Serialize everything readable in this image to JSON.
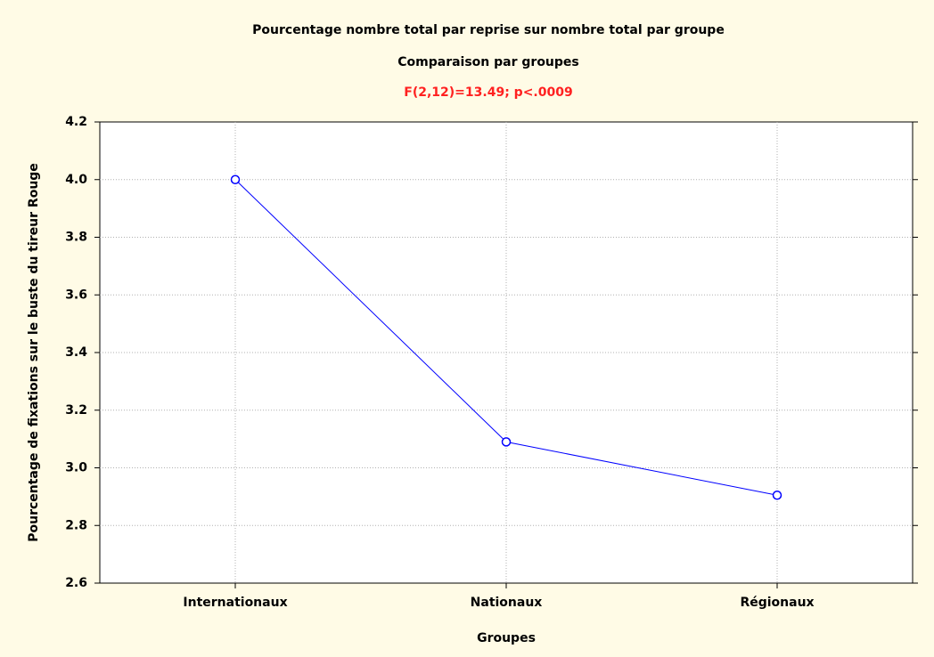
{
  "chart_data": {
    "type": "line",
    "title": "Pourcentage nombre total par reprise sur nombre total par groupe",
    "subtitle": "Comparaison par groupes",
    "annotation": "F(2,12)=13.49; p<.0009",
    "x_label": "Groupes",
    "y_label": "Pourcentage de fixations sur le buste du tireur Rouge",
    "categories": [
      "Internationaux",
      "Nationaux",
      "Régionaux"
    ],
    "series": [
      {
        "name": "Pourcentage",
        "color": "#0000ff",
        "values": [
          4.0,
          3.09,
          2.905
        ]
      }
    ],
    "ylim": [
      2.6,
      4.2
    ],
    "yticks": [
      {
        "value": 2.6,
        "label": "2.6"
      },
      {
        "value": 2.8,
        "label": "2.8"
      },
      {
        "value": 3.0,
        "label": "3.0"
      },
      {
        "value": 3.2,
        "label": "3.2"
      },
      {
        "value": 3.4,
        "label": "3.4"
      },
      {
        "value": 3.6,
        "label": "3.6"
      },
      {
        "value": 3.8,
        "label": "3.8"
      },
      {
        "value": 4.0,
        "label": "4.0"
      },
      {
        "value": 4.2,
        "label": "4.2"
      }
    ],
    "grid": true
  }
}
